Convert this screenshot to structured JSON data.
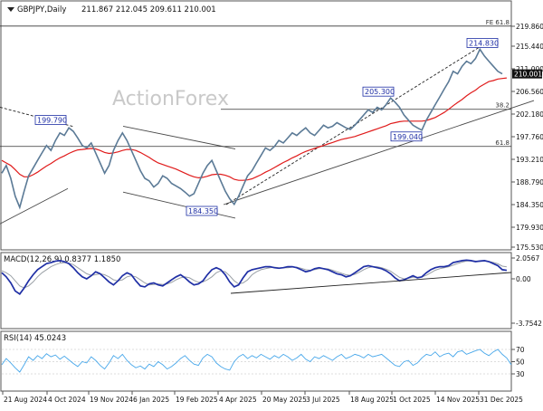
{
  "header": {
    "symbol_line": "GBPJPY,Daily",
    "ohlc": "211.867 212.045 209.611 210.001",
    "watermark": "ActionForex"
  },
  "colors": {
    "price": "#5b7a96",
    "ema": "#e01b1b",
    "macd": "#1f2fa5",
    "signal": "#9aa0a6",
    "rsi": "#47a7ea",
    "trend": "#222222",
    "channel": "#4a4a4a",
    "fib": "#333333",
    "label_box": "#1f2fa5"
  },
  "chart_data": [
    {
      "type": "line",
      "panel": "price",
      "title": "GBPJPY,Daily",
      "ylim": [
        175.53,
        219.8
      ],
      "yticks": [
        "219.860",
        "215.440",
        "211.000",
        "206.560",
        "202.180",
        "197.760",
        "193.210",
        "188.790",
        "184.350",
        "179.930",
        "175.530"
      ],
      "current_value": "210.001",
      "x_labels": [
        "21 Aug 2024",
        "4 Oct 2024",
        "19 Nov 2024",
        "6 Jan 2025",
        "19 Feb 2025",
        "4 Apr 2025",
        "20 May 2025",
        "3 Jul 2025",
        "18 Aug 2025",
        "1 Oct 2025",
        "14 Nov 2025",
        "31 Dec 2025"
      ],
      "series": [
        {
          "values": [
            190.5,
            192,
            189.5,
            186,
            183.8,
            187,
            190,
            191.5,
            193,
            194.5,
            196,
            195,
            197,
            198.5,
            198,
            199.5,
            198.8,
            197.5,
            196,
            195.5,
            196.5,
            194.5,
            192.5,
            190.5,
            192,
            195,
            197,
            198.5,
            197,
            195,
            193,
            191,
            189.5,
            189,
            187.8,
            188.5,
            190,
            189.5,
            188.5,
            188,
            187.5,
            186.8,
            186,
            186.5,
            188.5,
            190.5,
            192,
            193,
            191,
            189,
            187,
            185.5,
            184.4,
            186,
            188,
            190,
            191,
            192.5,
            194,
            195.5,
            195,
            195.8,
            197,
            196.5,
            197.5,
            198.5,
            198,
            198.8,
            199.5,
            198.5,
            198,
            199,
            200,
            199.5,
            199.8,
            200.5,
            200,
            199.5,
            199.2,
            200,
            201,
            202,
            203,
            202.5,
            203.5,
            203,
            204,
            205.3,
            204.5,
            203.5,
            202,
            201,
            200,
            199.5,
            199.04,
            201,
            202.5,
            204,
            205.5,
            207,
            208.5,
            210.5,
            210,
            211.5,
            212.5,
            212,
            213,
            214.83,
            213.5,
            212.5,
            211.5,
            210.5,
            210
          ]
        },
        {
          "values": [
            193,
            192.5,
            192,
            191.2,
            190.3,
            189.8,
            189.8,
            190.2,
            190.7,
            191.3,
            191.9,
            192.4,
            193,
            193.5,
            193.9,
            194.4,
            194.8,
            195.1,
            195.2,
            195.3,
            195.4,
            195.3,
            195,
            194.6,
            194.4,
            194.5,
            194.7,
            195,
            195.2,
            195.2,
            195,
            194.6,
            194.1,
            193.6,
            193,
            192.5,
            192.2,
            191.9,
            191.6,
            191.3,
            190.9,
            190.5,
            190.1,
            189.8,
            189.6,
            189.7,
            189.9,
            190.2,
            190.3,
            190.3,
            190.1,
            189.8,
            189.3,
            189.1,
            189.1,
            189.2,
            189.4,
            189.8,
            190.2,
            190.7,
            191.1,
            191.6,
            192.1,
            192.6,
            193,
            193.5,
            193.9,
            194.4,
            194.8,
            195.1,
            195.4,
            195.7,
            196,
            196.3,
            196.6,
            196.9,
            197.2,
            197.4,
            197.6,
            197.8,
            198.1,
            198.4,
            198.7,
            199,
            199.3,
            199.6,
            199.9,
            200.3,
            200.5,
            200.7,
            200.8,
            200.8,
            200.8,
            200.8,
            200.8,
            200.9,
            201.2,
            201.5,
            202,
            202.5,
            203.1,
            203.8,
            204.4,
            205,
            205.7,
            206.3,
            206.8,
            207.5,
            208,
            208.5,
            208.7,
            209,
            209.1,
            209.2
          ]
        }
      ],
      "annotations": [
        {
          "text": "199.790",
          "value": 199.79
        },
        {
          "text": "184.350",
          "value": 184.35
        },
        {
          "text": "205.300",
          "value": 205.3
        },
        {
          "text": "199.040",
          "value": 199.04
        },
        {
          "text": "214.830",
          "value": 214.83
        }
      ],
      "fib_levels": [
        {
          "label": "FE 61.8",
          "value": 219.9
        },
        {
          "label": "38.2",
          "value": 203.1
        },
        {
          "label": "61.8",
          "value": 195.8
        }
      ],
      "trendlines": [
        {
          "style": "solid",
          "from": [
            184.35,
            247
          ],
          "to": [
            204.8,
            590
          ]
        },
        {
          "style": "dashed",
          "from": [
            184.35,
            250
          ],
          "to": [
            216.5,
            540
          ]
        },
        {
          "style": "dashed",
          "from": [
            203.5,
            0
          ],
          "to": [
            199.7,
            82
          ]
        },
        {
          "style": "solid",
          "from": [
            180.6,
            0
          ],
          "to": [
            187.5,
            75
          ]
        },
        {
          "style": "solid",
          "from": [
            199.8,
            136
          ],
          "to": [
            195.3,
            260
          ]
        },
        {
          "style": "solid",
          "from": [
            186.8,
            136
          ],
          "to": [
            181.7,
            260
          ]
        }
      ]
    },
    {
      "type": "line",
      "panel": "macd",
      "title": "MACD(12,26,9) 0.8377 1.1850",
      "ylim": [
        -4.5,
        2.6
      ],
      "yticks": [
        "2.0567",
        "0.00",
        "-3.7542"
      ],
      "series": [
        {
          "name": "MACD",
          "values": [
            0.6,
            0.2,
            -0.4,
            -1.2,
            -1.5,
            -0.9,
            -0.2,
            0.4,
            0.9,
            1.2,
            1.5,
            1.6,
            1.75,
            1.8,
            1.7,
            1.5,
            1.1,
            0.6,
            0.2,
            0,
            0.3,
            0.7,
            0.5,
            0.1,
            -0.3,
            -0.6,
            -0.2,
            0.3,
            0.6,
            0.4,
            -0.2,
            -0.7,
            -0.8,
            -0.5,
            -0.4,
            -0.6,
            -0.7,
            -0.4,
            -0.1,
            0.2,
            0.4,
            0.1,
            -0.3,
            -0.6,
            -0.5,
            -0.2,
            0.4,
            0.9,
            1.1,
            0.9,
            0.4,
            -0.3,
            -0.8,
            -0.6,
            0.1,
            0.7,
            0.9,
            1,
            1.1,
            1.2,
            1.2,
            1.1,
            1.05,
            1.1,
            1.2,
            1.2,
            1.1,
            0.9,
            0.7,
            0.8,
            1,
            1.1,
            1,
            0.9,
            0.7,
            0.5,
            0.4,
            0.2,
            0.3,
            0.6,
            0.9,
            1.2,
            1.3,
            1.2,
            1.1,
            1,
            0.8,
            0.5,
            0.1,
            -0.2,
            -0.1,
            0.1,
            0.3,
            0.1,
            0.2,
            0.6,
            0.9,
            1.1,
            1.2,
            1.2,
            1.3,
            1.6,
            1.7,
            1.8,
            1.85,
            1.8,
            1.7,
            1.75,
            1.8,
            1.7,
            1.5,
            1.3,
            0.9,
            0.84
          ]
        },
        {
          "name": "Signal",
          "values": [
            0.8,
            0.6,
            0.3,
            -0.2,
            -0.7,
            -0.9,
            -0.7,
            -0.3,
            0.2,
            0.6,
            0.9,
            1.2,
            1.4,
            1.55,
            1.6,
            1.55,
            1.4,
            1.1,
            0.8,
            0.5,
            0.35,
            0.4,
            0.5,
            0.4,
            0.2,
            -0.1,
            -0.2,
            -0.1,
            0.2,
            0.3,
            0.2,
            -0.1,
            -0.4,
            -0.6,
            -0.55,
            -0.5,
            -0.55,
            -0.5,
            -0.35,
            -0.1,
            0.1,
            0.2,
            0.1,
            -0.15,
            -0.35,
            -0.3,
            -0.1,
            0.2,
            0.6,
            0.8,
            0.7,
            0.3,
            -0.2,
            -0.5,
            -0.4,
            -0.1,
            0.4,
            0.7,
            0.9,
            1,
            1.1,
            1.15,
            1.1,
            1.08,
            1.1,
            1.15,
            1.15,
            1.05,
            0.9,
            0.85,
            0.9,
            1,
            1.02,
            0.98,
            0.85,
            0.7,
            0.55,
            0.4,
            0.35,
            0.45,
            0.65,
            0.9,
            1.1,
            1.2,
            1.2,
            1.1,
            0.95,
            0.75,
            0.45,
            0.15,
            0,
            0.05,
            0.15,
            0.15,
            0.18,
            0.35,
            0.6,
            0.85,
            1,
            1.1,
            1.2,
            1.35,
            1.5,
            1.65,
            1.75,
            1.78,
            1.75,
            1.73,
            1.75,
            1.73,
            1.63,
            1.48,
            1.25,
            1.19
          ]
        }
      ]
    },
    {
      "type": "line",
      "panel": "rsi",
      "title": "RSI(14) 45.0243",
      "ylim": [
        18,
        82
      ],
      "yticks": [
        "70",
        "50",
        "30"
      ],
      "series": [
        {
          "name": "RSI",
          "values": [
            45,
            55,
            48,
            40,
            33,
            45,
            58,
            52,
            60,
            55,
            63,
            58,
            61,
            54,
            59,
            53,
            47,
            42,
            50,
            48,
            58,
            52,
            44,
            38,
            48,
            60,
            55,
            62,
            52,
            45,
            40,
            43,
            38,
            46,
            42,
            50,
            45,
            38,
            42,
            48,
            55,
            60,
            52,
            46,
            44,
            56,
            62,
            58,
            48,
            42,
            38,
            36,
            50,
            58,
            62,
            55,
            60,
            56,
            62,
            58,
            54,
            60,
            56,
            62,
            58,
            52,
            56,
            62,
            54,
            50,
            58,
            55,
            60,
            56,
            52,
            58,
            62,
            55,
            58,
            62,
            60,
            56,
            62,
            58,
            60,
            62,
            56,
            50,
            44,
            42,
            50,
            52,
            44,
            48,
            56,
            62,
            60,
            66,
            58,
            62,
            64,
            58,
            66,
            68,
            62,
            65,
            68,
            70,
            64,
            60,
            66,
            70,
            62,
            56,
            45
          ]
        }
      ]
    }
  ]
}
